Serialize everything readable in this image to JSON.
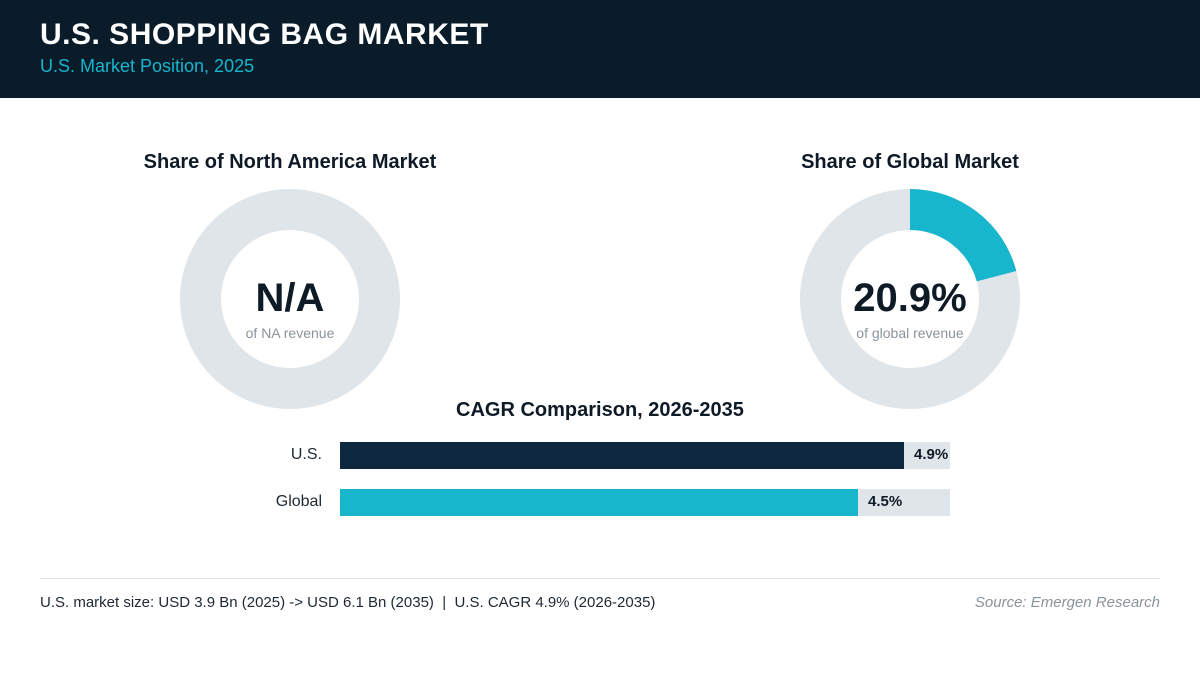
{
  "header": {
    "title": "U.S. SHOPPING BAG MARKET",
    "subtitle": "U.S. Market Position, 2025"
  },
  "colors": {
    "header_bg": "#0a1b2a",
    "accent": "#17b6cc",
    "navy": "#0e2840",
    "track": "#e0e5e9"
  },
  "chart_data": [
    {
      "type": "pie",
      "title": "Share of North America Market",
      "center_label": "N/A",
      "center_caption": "of NA revenue",
      "values": [
        0,
        100
      ],
      "colors": [
        "#17b6cc",
        "#e0e5e9"
      ]
    },
    {
      "type": "pie",
      "title": "Share of Global Market",
      "center_label": "20.9%",
      "center_caption": "of global revenue",
      "values": [
        20.9,
        79.1
      ],
      "colors": [
        "#17b6cc",
        "#e0e5e9"
      ]
    },
    {
      "type": "bar",
      "title": "CAGR Comparison, 2026-2035",
      "categories": [
        "U.S.",
        "Global"
      ],
      "values": [
        4.9,
        4.5
      ],
      "value_labels": [
        "4.9%",
        "4.5%"
      ],
      "colors": [
        "#0e2840",
        "#17b6cc"
      ],
      "xlim": [
        0,
        5.3
      ]
    }
  ],
  "footer": {
    "note": "U.S. market size: USD 3.9 Bn (2025) -> USD 6.1 Bn (2035)  |  U.S. CAGR 4.9% (2026-2035)",
    "source": "Source: Emergen Research"
  }
}
